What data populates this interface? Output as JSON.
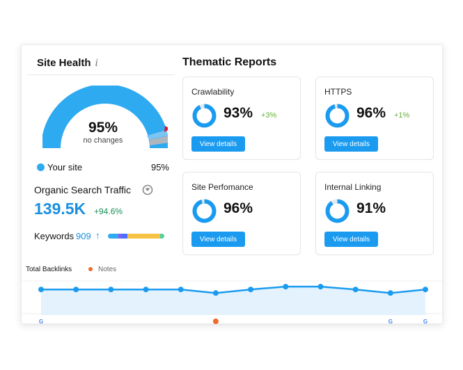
{
  "site_health": {
    "title": "Site Health",
    "info_icon": "i",
    "score": "95%",
    "score_value": 95,
    "subtitle": "no changes",
    "legend_label": "Your site",
    "legend_value": "95%"
  },
  "traffic": {
    "label": "Organic Search Traffic",
    "value": "139.5K",
    "change": "+94.6%"
  },
  "keywords": {
    "label": "Keywords",
    "value": "909",
    "arrow": "↑",
    "distribution": [
      {
        "share": 0.18,
        "color": "#2eaaf0"
      },
      {
        "share": 0.05,
        "color": "#8b5cf6"
      },
      {
        "share": 0.12,
        "color": "#4c6fff"
      },
      {
        "share": 0.58,
        "color": "#f6c244"
      },
      {
        "share": 0.07,
        "color": "#4fd1a5"
      }
    ]
  },
  "thematic": {
    "title": "Thematic Reports",
    "reports": [
      {
        "name": "Crawlability",
        "value": "93%",
        "percent": 93,
        "change": "+3%",
        "button": "View details"
      },
      {
        "name": "HTTPS",
        "value": "96%",
        "percent": 96,
        "change": "+1%",
        "button": "View details"
      },
      {
        "name": "Site Perfomance",
        "value": "96%",
        "percent": 96,
        "change": "",
        "button": "View details"
      },
      {
        "name": "Internal Linking",
        "value": "91%",
        "percent": 91,
        "change": "",
        "button": "View details"
      }
    ]
  },
  "backlinks": {
    "title": "Total Backlinks",
    "notes_label": "Notes",
    "values": [
      72,
      72,
      72,
      72,
      72,
      62,
      72,
      80,
      80,
      72,
      62,
      72
    ],
    "google_markers": [
      0,
      10,
      11
    ],
    "note_markers": [
      5
    ]
  },
  "colors": {
    "accent": "#1a9bf0",
    "gauge": "#2eaaf0",
    "positive": "#64b135",
    "note": "#f06a2a"
  }
}
